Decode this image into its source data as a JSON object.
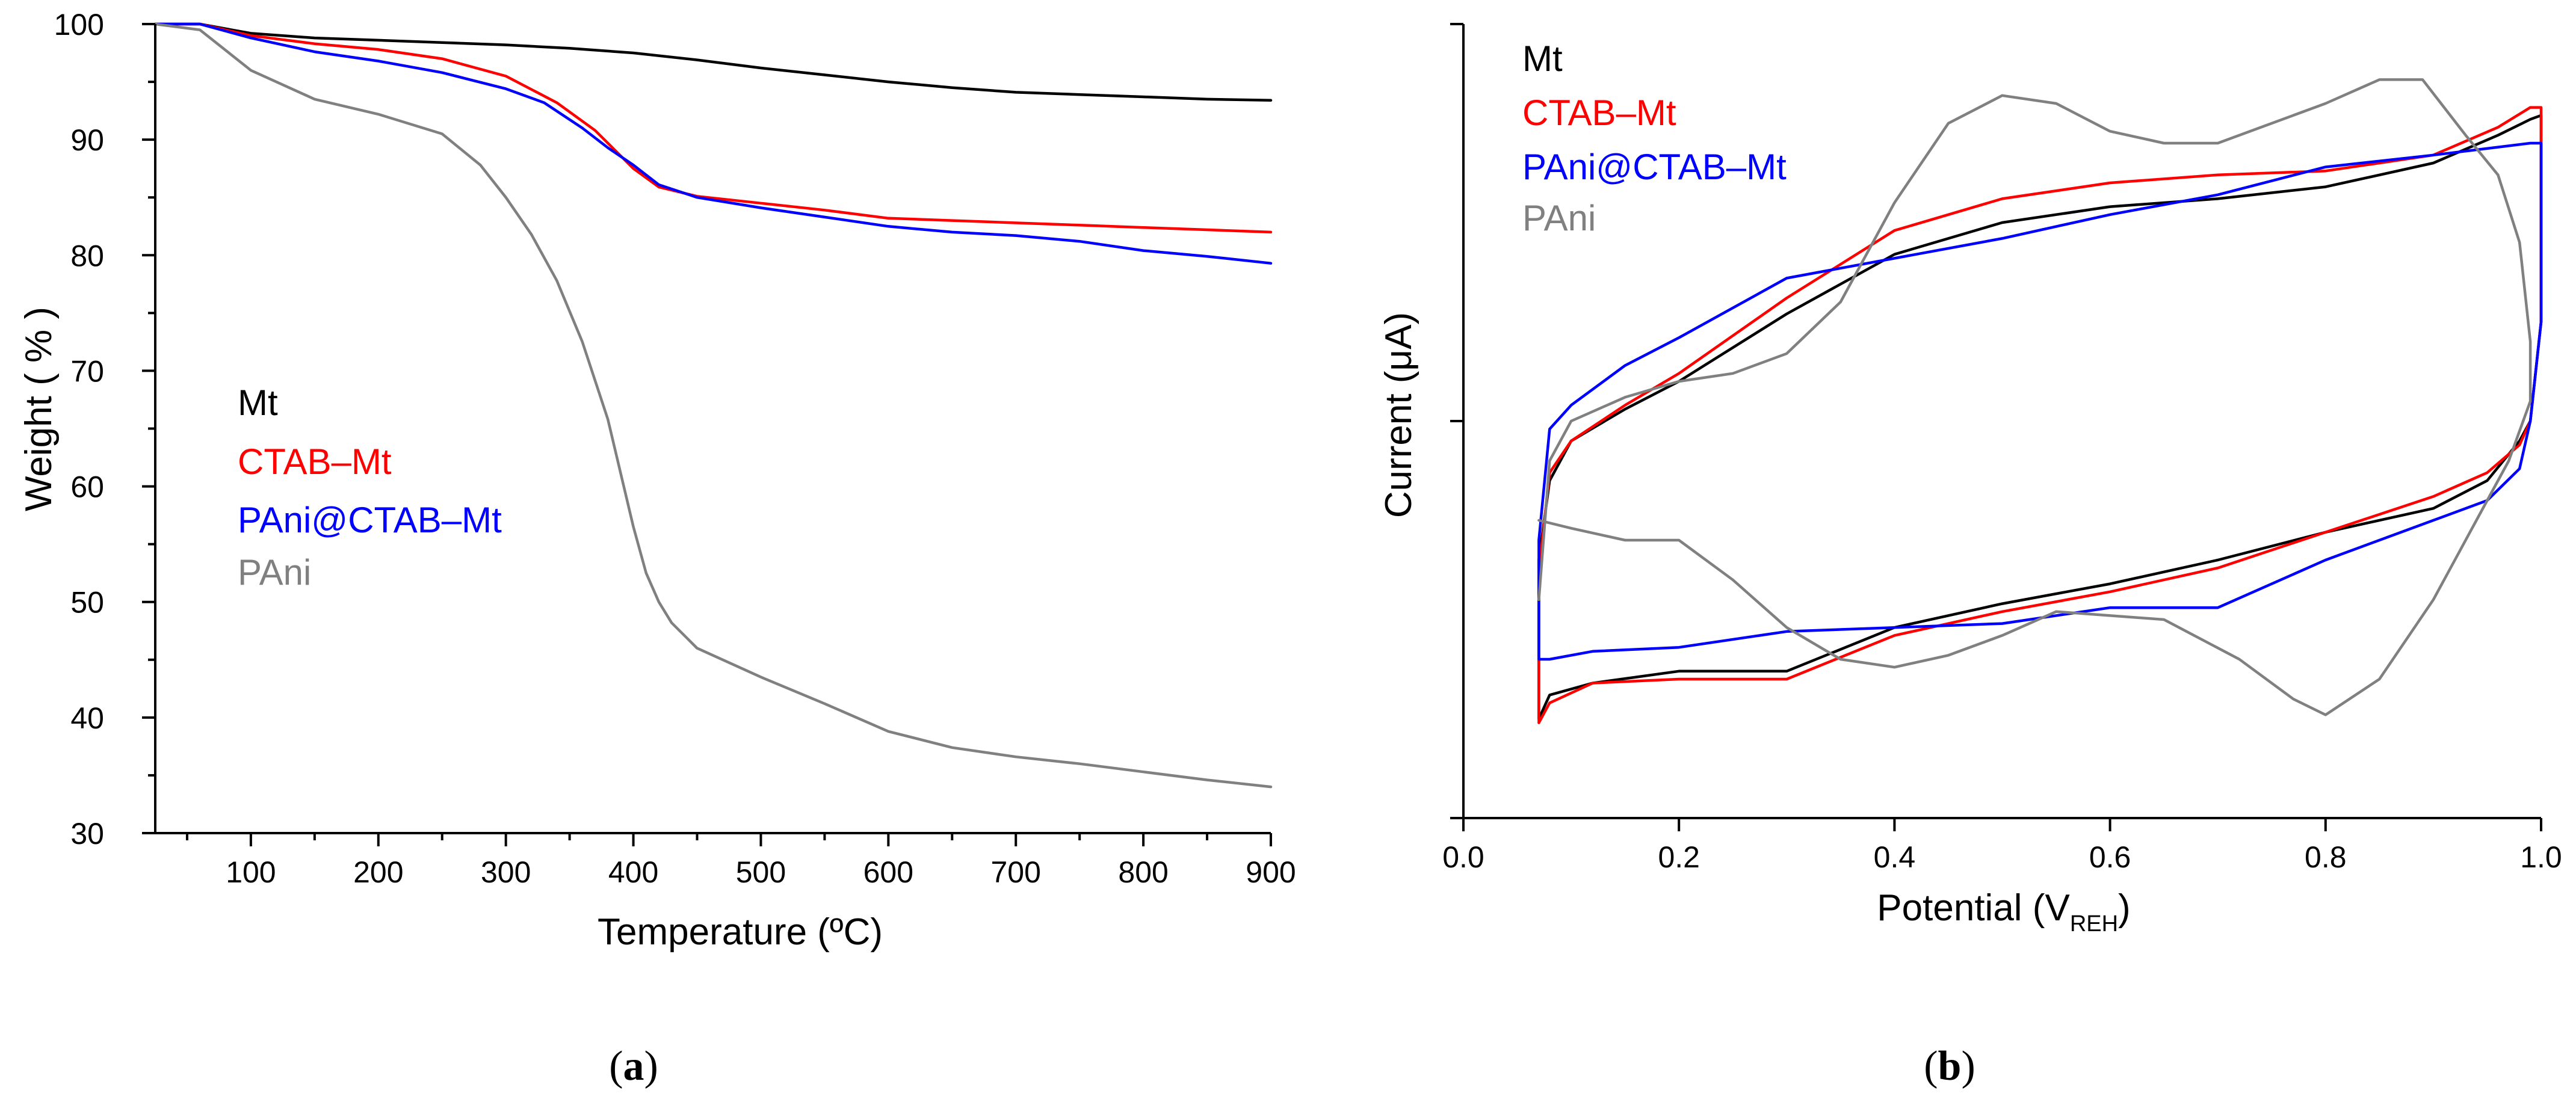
{
  "chart_data": [
    {
      "type": "line",
      "panel_label": "a",
      "xlabel": "Temperature (ºC)",
      "ylabel": "Weight ( % )",
      "xlim": [
        25,
        900
      ],
      "ylim": [
        30,
        100
      ],
      "x_ticks": [
        100,
        200,
        300,
        400,
        500,
        600,
        700,
        800,
        900
      ],
      "x_tick_labels": [
        "100",
        "200",
        "300",
        "400",
        "500",
        "600",
        "700",
        "800",
        "900"
      ],
      "y_ticks": [
        30,
        40,
        50,
        60,
        70,
        80,
        90,
        100
      ],
      "y_tick_labels": [
        "30",
        "40",
        "50",
        "60",
        "70",
        "80",
        "90",
        "100"
      ],
      "legend_position": "middle-left",
      "series": [
        {
          "name": "Mt",
          "color": "#000000",
          "x": [
            25,
            60,
            100,
            150,
            200,
            250,
            300,
            350,
            400,
            450,
            500,
            550,
            600,
            650,
            700,
            750,
            800,
            850,
            900
          ],
          "y": [
            100,
            100,
            99.2,
            98.8,
            98.6,
            98.4,
            98.2,
            97.9,
            97.5,
            96.9,
            96.2,
            95.6,
            95.0,
            94.5,
            94.1,
            93.9,
            93.7,
            93.5,
            93.4
          ]
        },
        {
          "name": "CTAB–Mt",
          "color": "#ff0000",
          "x": [
            25,
            60,
            100,
            150,
            200,
            250,
            300,
            340,
            370,
            400,
            420,
            450,
            500,
            550,
            600,
            650,
            700,
            750,
            800,
            850,
            900
          ],
          "y": [
            100,
            100,
            99.0,
            98.3,
            97.8,
            97.0,
            95.5,
            93.2,
            90.8,
            87.5,
            85.9,
            85.1,
            84.5,
            83.9,
            83.2,
            83.0,
            82.8,
            82.6,
            82.4,
            82.2,
            82.0
          ]
        },
        {
          "name": "PAni@CTAB–Mt",
          "color": "#0000ff",
          "x": [
            25,
            60,
            100,
            150,
            200,
            250,
            300,
            330,
            360,
            380,
            400,
            420,
            450,
            500,
            550,
            600,
            650,
            700,
            750,
            800,
            850,
            900
          ],
          "y": [
            100,
            100,
            98.8,
            97.6,
            96.8,
            95.8,
            94.4,
            93.2,
            91.0,
            89.3,
            87.8,
            86.1,
            85.0,
            84.1,
            83.3,
            82.5,
            82.0,
            81.7,
            81.2,
            80.4,
            79.9,
            79.3
          ]
        },
        {
          "name": "PAni",
          "color": "#808080",
          "x": [
            25,
            60,
            100,
            150,
            200,
            250,
            280,
            300,
            320,
            340,
            360,
            380,
            400,
            410,
            420,
            430,
            450,
            500,
            550,
            600,
            650,
            700,
            750,
            800,
            850,
            900
          ],
          "y": [
            100,
            99.5,
            96.0,
            93.5,
            92.2,
            90.5,
            87.8,
            85.0,
            81.8,
            77.8,
            72.5,
            65.8,
            56.5,
            52.5,
            50.0,
            48.2,
            46.0,
            43.5,
            41.2,
            38.8,
            37.4,
            36.6,
            36.0,
            35.3,
            34.6,
            34.0
          ]
        }
      ]
    },
    {
      "type": "line",
      "panel_label": "b",
      "xlabel": "Potential (V",
      "xlabel_subscript": "REH",
      "xlabel_suffix": ")",
      "ylabel": "Current (μA)",
      "xlim": [
        0,
        1
      ],
      "ylim": [
        -1,
        1
      ],
      "x_ticks": [
        0,
        0.2,
        0.4,
        0.6,
        0.8,
        1.0
      ],
      "x_tick_labels": [
        "0.0",
        "0.2",
        "0.4",
        "0.6",
        "0.8",
        "1.0"
      ],
      "y_ticks": [
        -1,
        0,
        1
      ],
      "y_tick_labels": [
        "",
        "",
        ""
      ],
      "legend_position": "top-left",
      "series": [
        {
          "name": "Mt",
          "color": "#000000",
          "x": [
            0.07,
            0.07,
            0.08,
            0.1,
            0.15,
            0.2,
            0.3,
            0.4,
            0.5,
            0.6,
            0.7,
            0.8,
            0.9,
            0.96,
            0.99,
            1.0,
            1.0,
            0.99,
            0.98,
            0.95,
            0.9,
            0.8,
            0.7,
            0.6,
            0.5,
            0.4,
            0.3,
            0.2,
            0.12,
            0.08,
            0.07
          ],
          "y": [
            -0.75,
            -0.35,
            -0.15,
            -0.05,
            0.03,
            0.1,
            0.27,
            0.42,
            0.5,
            0.54,
            0.56,
            0.59,
            0.65,
            0.72,
            0.76,
            0.77,
            0.25,
            0.0,
            -0.05,
            -0.15,
            -0.22,
            -0.28,
            -0.35,
            -0.41,
            -0.46,
            -0.52,
            -0.63,
            -0.63,
            -0.66,
            -0.69,
            -0.75
          ]
        },
        {
          "name": "CTAB–Mt",
          "color": "#ff0000",
          "x": [
            0.07,
            0.07,
            0.08,
            0.1,
            0.15,
            0.2,
            0.3,
            0.4,
            0.5,
            0.6,
            0.7,
            0.8,
            0.9,
            0.96,
            0.99,
            1.0,
            1.0,
            0.99,
            0.98,
            0.95,
            0.9,
            0.8,
            0.7,
            0.6,
            0.5,
            0.4,
            0.3,
            0.2,
            0.12,
            0.08,
            0.07
          ],
          "y": [
            -0.76,
            -0.38,
            -0.13,
            -0.05,
            0.04,
            0.12,
            0.31,
            0.48,
            0.56,
            0.6,
            0.62,
            0.63,
            0.67,
            0.74,
            0.79,
            0.79,
            0.25,
            0.0,
            -0.06,
            -0.13,
            -0.19,
            -0.28,
            -0.37,
            -0.43,
            -0.48,
            -0.54,
            -0.65,
            -0.65,
            -0.66,
            -0.71,
            -0.76
          ]
        },
        {
          "name": "PAni@CTAB–Mt",
          "color": "#0000ff",
          "x": [
            0.07,
            0.07,
            0.08,
            0.1,
            0.15,
            0.2,
            0.3,
            0.4,
            0.5,
            0.6,
            0.7,
            0.8,
            0.9,
            0.96,
            0.99,
            1.0,
            1.0,
            0.99,
            0.98,
            0.95,
            0.9,
            0.8,
            0.7,
            0.6,
            0.5,
            0.4,
            0.3,
            0.2,
            0.12,
            0.08,
            0.07
          ],
          "y": [
            -0.6,
            -0.3,
            -0.02,
            0.04,
            0.14,
            0.21,
            0.36,
            0.41,
            0.46,
            0.52,
            0.57,
            0.64,
            0.67,
            0.69,
            0.7,
            0.7,
            0.25,
            0.0,
            -0.12,
            -0.2,
            -0.25,
            -0.35,
            -0.47,
            -0.47,
            -0.51,
            -0.52,
            -0.53,
            -0.57,
            -0.58,
            -0.6,
            -0.6
          ]
        },
        {
          "name": "PAni",
          "color": "#808080",
          "x": [
            0.07,
            0.08,
            0.1,
            0.15,
            0.2,
            0.25,
            0.3,
            0.35,
            0.4,
            0.45,
            0.5,
            0.55,
            0.6,
            0.65,
            0.7,
            0.75,
            0.8,
            0.85,
            0.89,
            0.93,
            0.96,
            0.98,
            0.99,
            0.99,
            0.97,
            0.94,
            0.9,
            0.85,
            0.8,
            0.77,
            0.72,
            0.65,
            0.6,
            0.55,
            0.5,
            0.45,
            0.4,
            0.35,
            0.3,
            0.25,
            0.2,
            0.15,
            0.1,
            0.07
          ],
          "y": [
            -0.45,
            -0.1,
            0.0,
            0.06,
            0.1,
            0.12,
            0.17,
            0.3,
            0.55,
            0.75,
            0.82,
            0.8,
            0.73,
            0.7,
            0.7,
            0.75,
            0.8,
            0.86,
            0.86,
            0.72,
            0.62,
            0.45,
            0.2,
            0.05,
            -0.1,
            -0.25,
            -0.45,
            -0.65,
            -0.74,
            -0.7,
            -0.6,
            -0.5,
            -0.49,
            -0.48,
            -0.54,
            -0.59,
            -0.62,
            -0.6,
            -0.52,
            -0.4,
            -0.3,
            -0.3,
            -0.27,
            -0.25
          ]
        }
      ]
    }
  ],
  "captions": {
    "a_open": "(",
    "a_letter": "a",
    "a_close": ")",
    "b_open": "(",
    "b_letter": "b",
    "b_close": ")"
  }
}
